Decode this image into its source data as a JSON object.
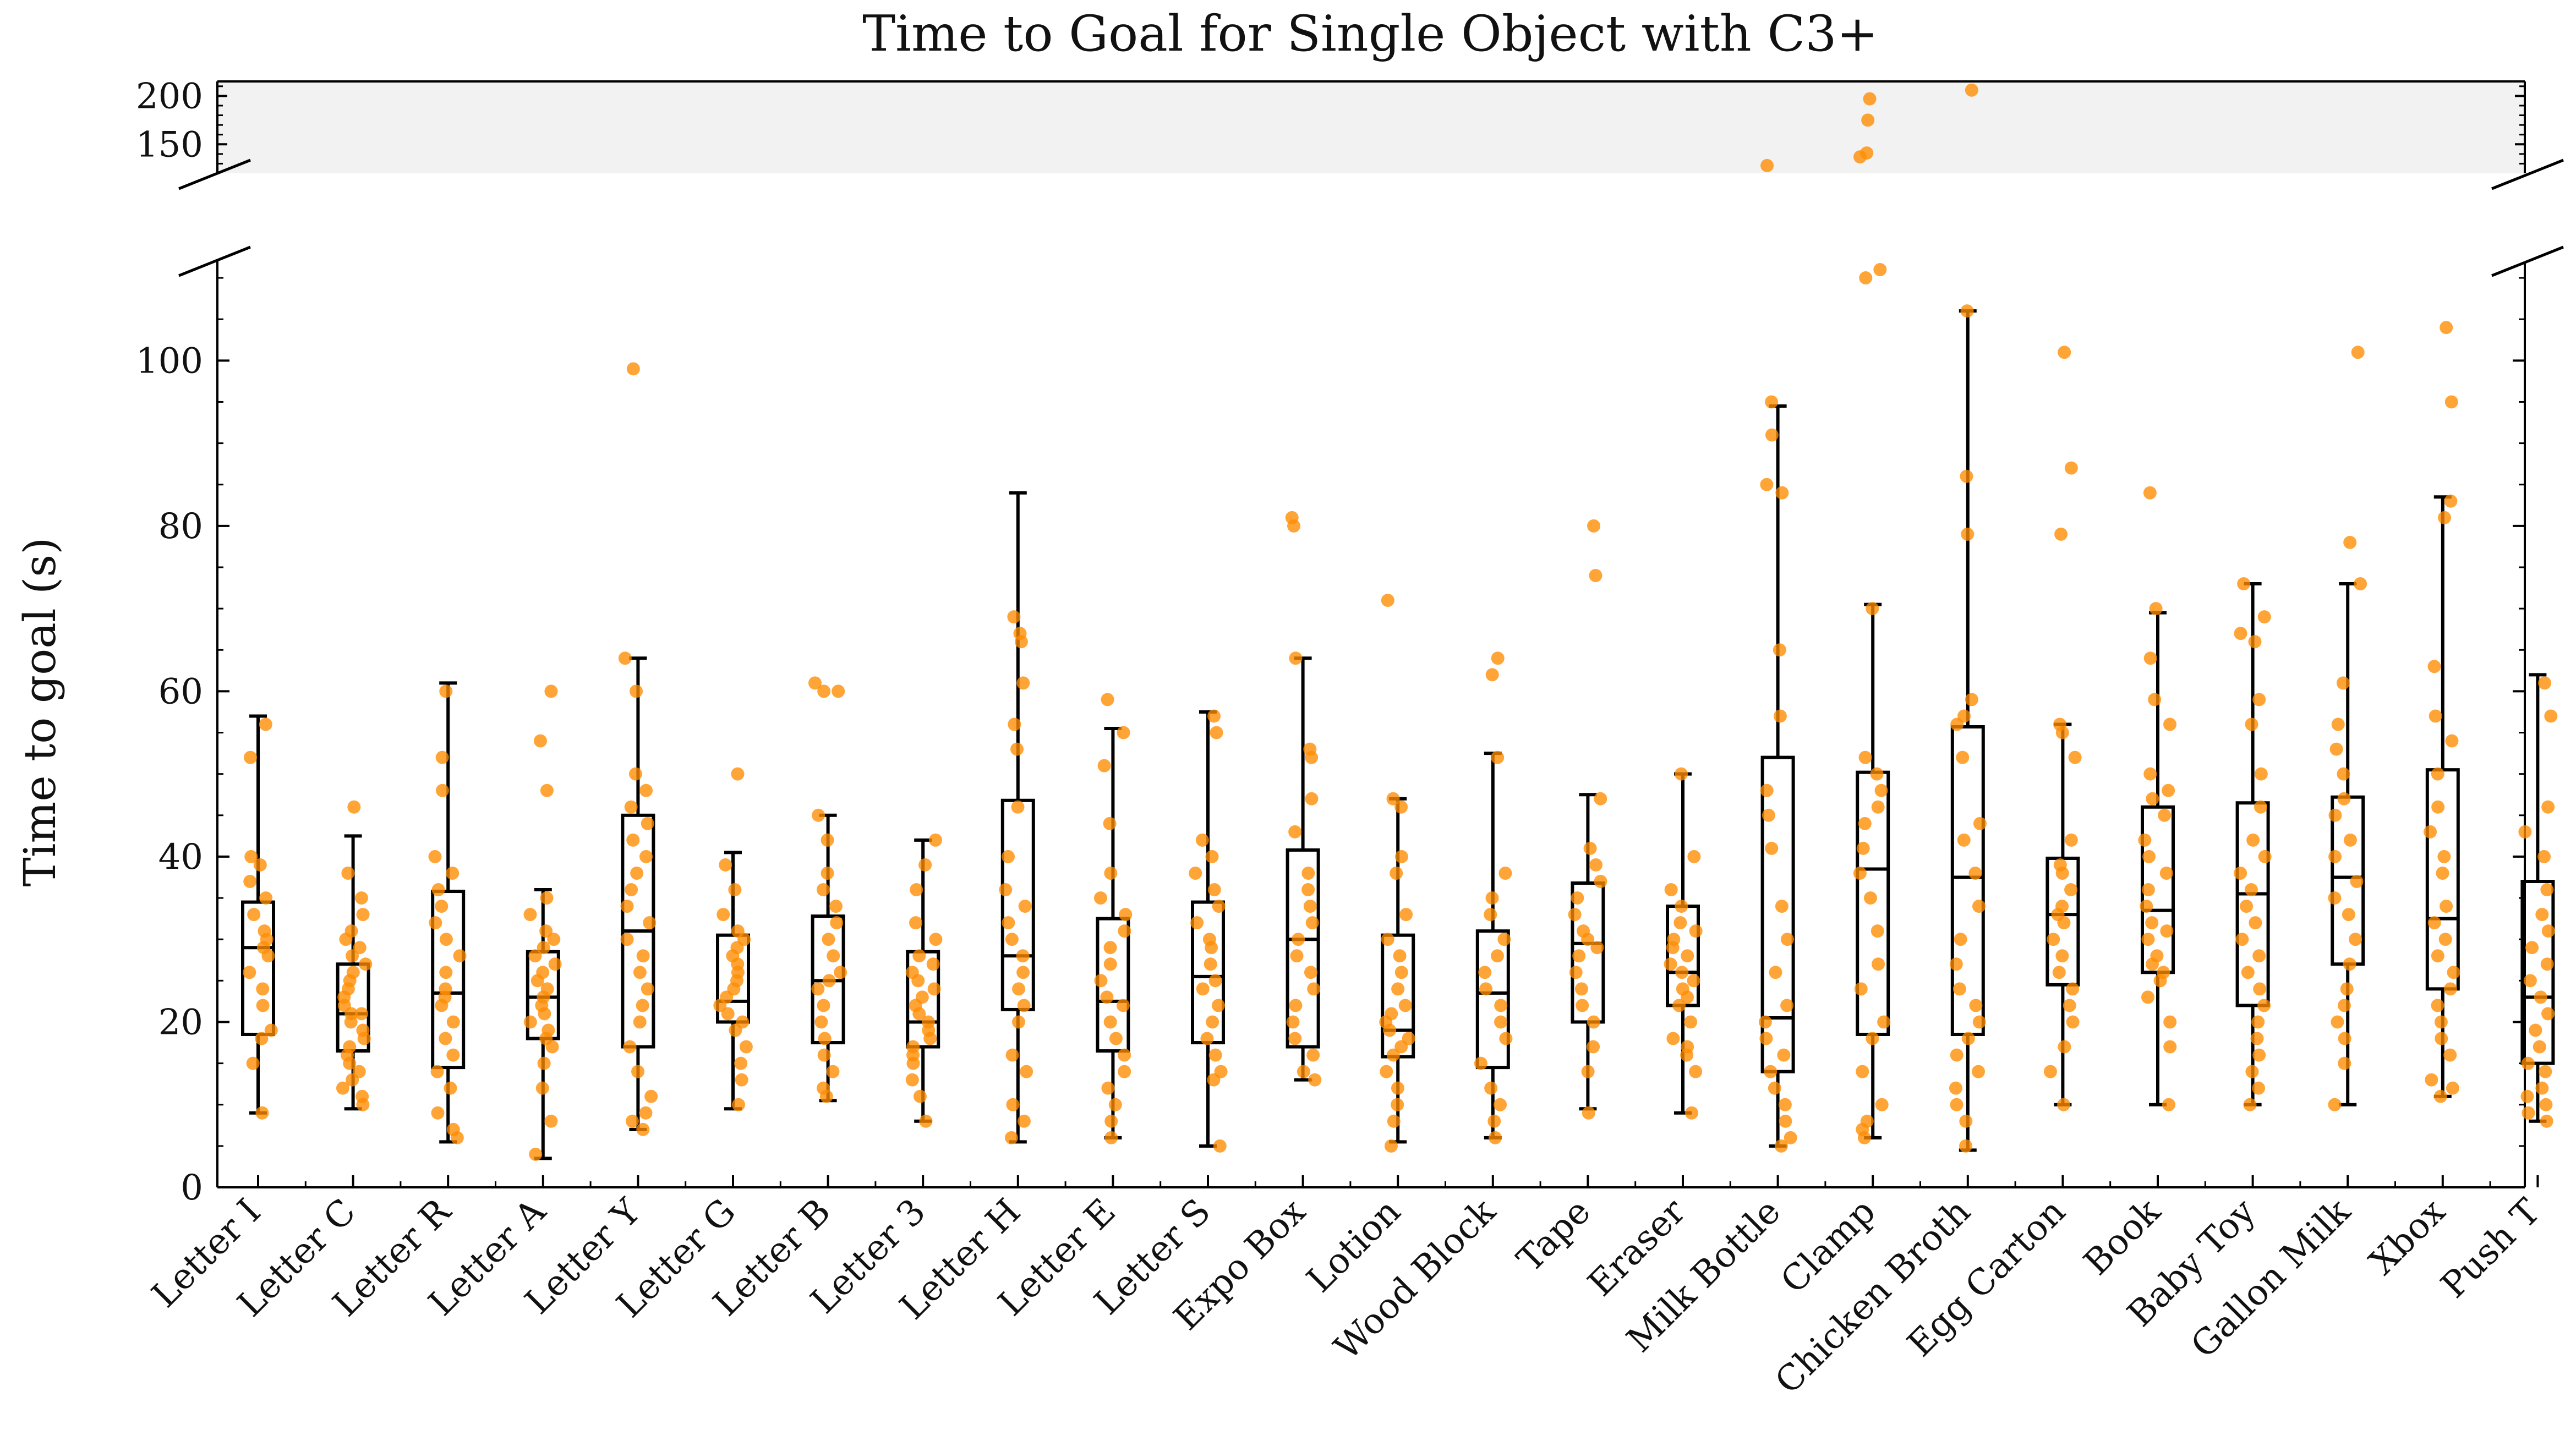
{
  "chart_data": {
    "type": "box",
    "title": "Time to Goal for Single Object with C3+",
    "xlabel": "",
    "ylabel": "Time to goal (s)",
    "broken_axis": {
      "lower_ylim": [
        0,
        112
      ],
      "upper_ylim": [
        120,
        215
      ],
      "lower_yticks": [
        0,
        20,
        40,
        60,
        80,
        100
      ],
      "upper_yticks": [
        150,
        200
      ]
    },
    "point_color": "#FF8C00",
    "upper_band_color": "#F2F2F2",
    "grid": false,
    "legend": "none",
    "categories": [
      "Letter I",
      "Letter C",
      "Letter R",
      "Letter A",
      "Letter Y",
      "Letter G",
      "Letter B",
      "Letter 3",
      "Letter H",
      "Letter E",
      "Letter S",
      "Expo Box",
      "Lotion",
      "Wood Block",
      "Tape",
      "Eraser",
      "Milk Bottle",
      "Clamp",
      "Chicken Broth",
      "Egg Carton",
      "Book",
      "Baby Toy",
      "Gallon Milk",
      "Xbox",
      "Push T"
    ],
    "boxes": [
      {
        "whislo": 9,
        "q1": 18.5,
        "med": 29,
        "q3": 34.5,
        "whishi": 57
      },
      {
        "whislo": 9.5,
        "q1": 16.5,
        "med": 21,
        "q3": 27,
        "whishi": 42.5
      },
      {
        "whislo": 5.5,
        "q1": 14.5,
        "med": 23.5,
        "q3": 35.8,
        "whishi": 61
      },
      {
        "whislo": 3.5,
        "q1": 18,
        "med": 23,
        "q3": 28.5,
        "whishi": 36
      },
      {
        "whislo": 7,
        "q1": 17,
        "med": 31,
        "q3": 45,
        "whishi": 64
      },
      {
        "whislo": 9.5,
        "q1": 20,
        "med": 22.5,
        "q3": 30.5,
        "whishi": 40.5
      },
      {
        "whislo": 10.5,
        "q1": 17.5,
        "med": 25,
        "q3": 32.8,
        "whishi": 45
      },
      {
        "whislo": 8,
        "q1": 17,
        "med": 20,
        "q3": 28.5,
        "whishi": 42
      },
      {
        "whislo": 5.5,
        "q1": 21.5,
        "med": 28,
        "q3": 46.8,
        "whishi": 84
      },
      {
        "whislo": 6,
        "q1": 16.5,
        "med": 22.5,
        "q3": 32.5,
        "whishi": 55.5
      },
      {
        "whislo": 5,
        "q1": 17.5,
        "med": 25.5,
        "q3": 34.5,
        "whishi": 57.5
      },
      {
        "whislo": 13,
        "q1": 17,
        "med": 30,
        "q3": 40.8,
        "whishi": 64
      },
      {
        "whislo": 5.5,
        "q1": 15.8,
        "med": 19,
        "q3": 30.5,
        "whishi": 47
      },
      {
        "whislo": 6,
        "q1": 14.5,
        "med": 23.5,
        "q3": 31,
        "whishi": 52.5
      },
      {
        "whislo": 9.5,
        "q1": 20,
        "med": 29.5,
        "q3": 36.8,
        "whishi": 47.5
      },
      {
        "whislo": 9,
        "q1": 22,
        "med": 26,
        "q3": 34,
        "whishi": 50
      },
      {
        "whislo": 5,
        "q1": 14,
        "med": 20.5,
        "q3": 52,
        "whishi": 94.5
      },
      {
        "whislo": 6,
        "q1": 18.5,
        "med": 38.5,
        "q3": 50.2,
        "whishi": 70.5
      },
      {
        "whislo": 4.5,
        "q1": 18.5,
        "med": 37.5,
        "q3": 55.7,
        "whishi": 106
      },
      {
        "whislo": 10,
        "q1": 24.5,
        "med": 33,
        "q3": 39.8,
        "whishi": 56
      },
      {
        "whislo": 10,
        "q1": 26,
        "med": 33.5,
        "q3": 46,
        "whishi": 69.5
      },
      {
        "whislo": 10,
        "q1": 22,
        "med": 35.5,
        "q3": 46.5,
        "whishi": 73
      },
      {
        "whislo": 10,
        "q1": 27,
        "med": 37.5,
        "q3": 47.2,
        "whishi": 73
      },
      {
        "whislo": 11,
        "q1": 24,
        "med": 32.5,
        "q3": 50.5,
        "whishi": 83.5
      },
      {
        "whislo": 8,
        "q1": 15,
        "med": 23,
        "q3": 37,
        "whishi": 62
      }
    ],
    "points": [
      [
        9,
        15,
        18,
        19,
        22,
        24,
        26,
        28,
        29,
        30,
        31,
        33,
        35,
        37,
        39,
        40,
        52,
        56
      ],
      [
        10,
        11,
        12,
        13,
        14,
        15,
        16,
        17,
        18,
        19,
        20,
        21,
        21,
        22,
        23,
        24,
        25,
        26,
        27,
        28,
        29,
        30,
        31,
        33,
        35,
        38,
        46
      ],
      [
        6,
        7,
        9,
        12,
        14,
        16,
        18,
        20,
        22,
        23,
        24,
        26,
        28,
        30,
        32,
        34,
        36,
        38,
        40,
        48,
        52,
        60
      ],
      [
        4,
        8,
        12,
        15,
        17,
        18,
        19,
        20,
        21,
        22,
        23,
        24,
        25,
        26,
        27,
        28,
        29,
        30,
        31,
        33,
        35,
        48,
        54,
        60
      ],
      [
        7,
        8,
        9,
        11,
        14,
        17,
        20,
        22,
        24,
        26,
        28,
        30,
        32,
        34,
        36,
        38,
        40,
        42,
        44,
        46,
        48,
        50,
        60,
        64,
        99
      ],
      [
        10,
        13,
        15,
        17,
        19,
        20,
        21,
        22,
        23,
        24,
        25,
        26,
        27,
        28,
        29,
        30,
        31,
        33,
        36,
        39,
        50
      ],
      [
        11,
        12,
        14,
        16,
        18,
        20,
        22,
        24,
        25,
        26,
        28,
        30,
        32,
        34,
        36,
        38,
        42,
        45,
        60,
        60,
        61
      ],
      [
        8,
        11,
        13,
        15,
        16,
        17,
        18,
        19,
        20,
        21,
        22,
        23,
        24,
        25,
        26,
        27,
        28,
        30,
        32,
        36,
        39,
        42
      ],
      [
        6,
        8,
        10,
        14,
        16,
        20,
        22,
        24,
        26,
        28,
        30,
        32,
        34,
        36,
        40,
        46,
        53,
        56,
        61,
        66,
        67,
        69
      ],
      [
        6,
        8,
        10,
        12,
        14,
        16,
        18,
        20,
        22,
        23,
        25,
        27,
        29,
        31,
        33,
        35,
        38,
        44,
        51,
        55,
        59
      ],
      [
        5,
        13,
        14,
        16,
        18,
        20,
        22,
        24,
        25,
        27,
        29,
        30,
        32,
        34,
        36,
        38,
        40,
        42,
        55,
        57
      ],
      [
        13,
        14,
        16,
        18,
        20,
        22,
        24,
        26,
        28,
        30,
        32,
        34,
        36,
        38,
        43,
        47,
        52,
        53,
        64,
        80,
        81
      ],
      [
        5,
        8,
        10,
        12,
        14,
        16,
        17,
        18,
        19,
        20,
        21,
        22,
        24,
        26,
        28,
        30,
        33,
        38,
        40,
        46,
        47,
        71
      ],
      [
        6,
        8,
        10,
        12,
        15,
        18,
        20,
        22,
        24,
        26,
        28,
        30,
        33,
        35,
        38,
        52,
        62,
        64
      ],
      [
        9,
        14,
        17,
        20,
        22,
        24,
        26,
        28,
        29,
        30,
        31,
        33,
        35,
        37,
        39,
        41,
        47,
        74,
        80
      ],
      [
        9,
        14,
        16,
        17,
        18,
        20,
        22,
        23,
        24,
        25,
        26,
        27,
        28,
        29,
        30,
        31,
        32,
        34,
        36,
        40,
        50
      ],
      [
        5,
        6,
        8,
        10,
        12,
        14,
        16,
        18,
        20,
        22,
        26,
        30,
        34,
        41,
        45,
        48,
        57,
        65,
        84,
        85,
        91,
        95,
        128
      ],
      [
        6,
        7,
        8,
        10,
        14,
        18,
        20,
        24,
        27,
        31,
        35,
        38,
        41,
        44,
        46,
        48,
        50,
        52,
        70,
        110,
        111,
        137,
        141,
        175,
        197
      ],
      [
        5,
        8,
        10,
        12,
        14,
        16,
        18,
        20,
        22,
        24,
        27,
        30,
        34,
        38,
        42,
        44,
        52,
        56,
        57,
        59,
        79,
        86,
        106,
        206
      ],
      [
        10,
        14,
        17,
        20,
        22,
        24,
        26,
        28,
        30,
        32,
        33,
        34,
        36,
        38,
        39,
        42,
        52,
        55,
        56,
        79,
        87,
        101
      ],
      [
        10,
        17,
        20,
        23,
        25,
        26,
        27,
        28,
        30,
        31,
        32,
        34,
        36,
        38,
        40,
        42,
        45,
        47,
        48,
        50,
        56,
        59,
        64,
        70,
        84
      ],
      [
        10,
        12,
        14,
        16,
        18,
        20,
        22,
        24,
        26,
        28,
        30,
        32,
        34,
        36,
        38,
        40,
        42,
        46,
        50,
        56,
        59,
        66,
        67,
        69,
        73
      ],
      [
        10,
        15,
        18,
        20,
        22,
        24,
        27,
        30,
        33,
        35,
        37,
        40,
        42,
        45,
        47,
        50,
        53,
        56,
        61,
        73,
        78,
        101
      ],
      [
        11,
        12,
        13,
        16,
        18,
        20,
        22,
        24,
        26,
        28,
        30,
        32,
        34,
        38,
        40,
        43,
        46,
        50,
        54,
        57,
        63,
        81,
        83,
        95,
        104
      ],
      [
        8,
        9,
        10,
        11,
        12,
        14,
        15,
        17,
        19,
        21,
        23,
        25,
        27,
        29,
        31,
        33,
        36,
        40,
        43,
        46,
        57,
        61
      ]
    ]
  }
}
